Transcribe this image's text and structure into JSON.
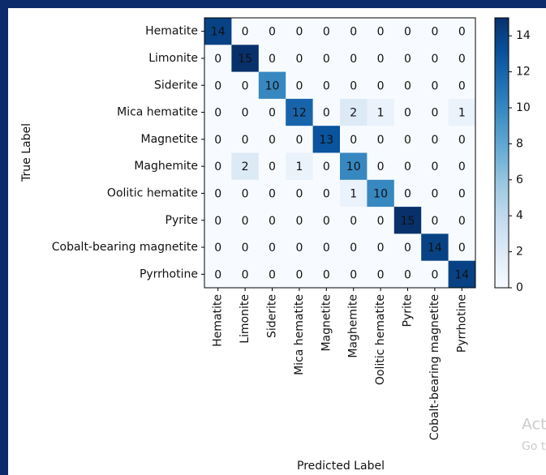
{
  "chart_data": {
    "type": "heatmap",
    "xlabel": "Predicted Label",
    "ylabel": "True Label",
    "x_categories": [
      "Hematite",
      "Limonite",
      "Siderite",
      "Mica hematite",
      "Magnetite",
      "Maghemite",
      "Oolitic hematite",
      "Pyrite",
      "Cobalt-bearing magnetite",
      "Pyrrhotine"
    ],
    "y_categories": [
      "Hematite",
      "Limonite",
      "Siderite",
      "Mica hematite",
      "Magnetite",
      "Maghemite",
      "Oolitic hematite",
      "Pyrite",
      "Cobalt-bearing magnetite",
      "Pyrrhotine"
    ],
    "matrix": [
      [
        14,
        0,
        0,
        0,
        0,
        0,
        0,
        0,
        0,
        0
      ],
      [
        0,
        15,
        0,
        0,
        0,
        0,
        0,
        0,
        0,
        0
      ],
      [
        0,
        0,
        10,
        0,
        0,
        0,
        0,
        0,
        0,
        0
      ],
      [
        0,
        0,
        0,
        12,
        0,
        2,
        1,
        0,
        0,
        1
      ],
      [
        0,
        0,
        0,
        0,
        13,
        0,
        0,
        0,
        0,
        0
      ],
      [
        0,
        2,
        0,
        1,
        0,
        10,
        0,
        0,
        0,
        0
      ],
      [
        0,
        0,
        0,
        0,
        0,
        1,
        10,
        0,
        0,
        0
      ],
      [
        0,
        0,
        0,
        0,
        0,
        0,
        0,
        15,
        0,
        0
      ],
      [
        0,
        0,
        0,
        0,
        0,
        0,
        0,
        0,
        14,
        0
      ],
      [
        0,
        0,
        0,
        0,
        0,
        0,
        0,
        0,
        0,
        14
      ]
    ],
    "colormap": "Blues",
    "clim": [
      0,
      15
    ],
    "cticks": [
      0,
      2,
      4,
      6,
      8,
      10,
      12,
      14
    ]
  },
  "watermark": [
    "Act",
    "Go t"
  ]
}
